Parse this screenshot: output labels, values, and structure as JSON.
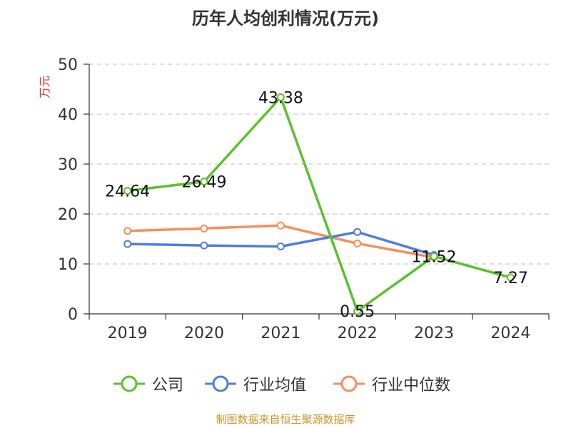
{
  "title": "历年人均创利情况(万元)",
  "source": "制图数据来自恒生聚源数据库",
  "colors": {
    "axis": "#333333",
    "grid": "#cccccc",
    "unit_label": "#e03030",
    "source": "#c8962a"
  },
  "chart_data": {
    "type": "line",
    "ylabel": "万元",
    "ylim": [
      0,
      50
    ],
    "yticks": [
      0,
      10,
      20,
      30,
      40,
      50
    ],
    "grid": "horizontal-dashed",
    "legend_position": "bottom",
    "categories": [
      "2019",
      "2020",
      "2021",
      "2022",
      "2023",
      "2024"
    ],
    "series": [
      {
        "name": "公司",
        "color": "#5cc22b",
        "values": [
          24.64,
          26.49,
          43.38,
          0.55,
          11.52,
          7.27
        ],
        "labels": [
          "24.64",
          "26.49",
          "43.38",
          "0.55",
          "11.52",
          "7.27"
        ],
        "show_labels": true
      },
      {
        "name": "行业均值",
        "color": "#4f7fdc",
        "values": [
          14.0,
          13.7,
          13.5,
          16.4,
          11.8,
          null
        ],
        "show_labels": false
      },
      {
        "name": "行业中位数",
        "color": "#f5905a",
        "values": [
          16.6,
          17.1,
          17.7,
          14.1,
          11.3,
          null
        ],
        "show_labels": false
      }
    ]
  }
}
